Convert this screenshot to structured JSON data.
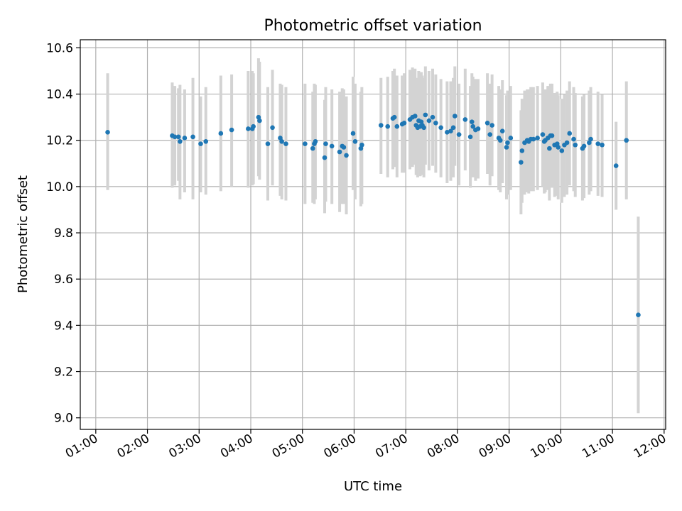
{
  "chart_data": {
    "type": "scatter",
    "title": "Photometric offset variation",
    "xlabel": "UTC time",
    "ylabel": "Photometric offset",
    "xlim": [
      0.7,
      12.03
    ],
    "ylim": [
      8.95,
      10.635
    ],
    "x_ticks": [
      1,
      2,
      3,
      4,
      5,
      6,
      7,
      8,
      9,
      10,
      11,
      12
    ],
    "x_tick_labels": [
      "01:00",
      "02:00",
      "03:00",
      "04:00",
      "05:00",
      "06:00",
      "07:00",
      "08:00",
      "09:00",
      "10:00",
      "11:00",
      "12:00"
    ],
    "y_ticks": [
      9.0,
      9.2,
      9.4,
      9.6,
      9.8,
      10.0,
      10.2,
      10.4,
      10.6
    ],
    "y_tick_labels": [
      "9.0",
      "9.2",
      "9.4",
      "9.6",
      "9.8",
      "10.0",
      "10.2",
      "10.4",
      "10.6"
    ],
    "grid": true,
    "colors": {
      "marker": "#1f77b4",
      "errorbar": "#d3d3d3",
      "grid": "#b0b0b0",
      "axes": "#000000"
    },
    "series": [
      {
        "name": "Photometric offset",
        "x": [
          1.23,
          2.48,
          2.53,
          2.6,
          2.63,
          2.72,
          2.88,
          3.03,
          3.13,
          3.42,
          3.63,
          3.95,
          4.03,
          4.05,
          4.15,
          4.17,
          4.33,
          4.42,
          4.57,
          4.6,
          4.68,
          5.05,
          5.2,
          5.23,
          5.25,
          5.43,
          5.45,
          5.57,
          5.72,
          5.77,
          5.8,
          5.85,
          5.98,
          6.02,
          6.13,
          6.15,
          6.52,
          6.65,
          6.75,
          6.78,
          6.83,
          6.93,
          6.97,
          7.08,
          7.13,
          7.18,
          7.2,
          7.23,
          7.25,
          7.28,
          7.3,
          7.32,
          7.35,
          7.38,
          7.45,
          7.52,
          7.58,
          7.68,
          7.8,
          7.87,
          7.92,
          7.95,
          8.03,
          8.15,
          8.25,
          8.28,
          8.3,
          8.35,
          8.4,
          8.58,
          8.63,
          8.67,
          8.8,
          8.83,
          8.87,
          8.95,
          8.97,
          9.03,
          9.23,
          9.25,
          9.3,
          9.35,
          9.38,
          9.42,
          9.47,
          9.55,
          9.65,
          9.68,
          9.7,
          9.75,
          9.78,
          9.8,
          9.83,
          9.88,
          9.93,
          9.95,
          10.02,
          10.07,
          10.12,
          10.17,
          10.25,
          10.28,
          10.42,
          10.45,
          10.55,
          10.58,
          10.72,
          10.8,
          11.07,
          11.27,
          11.5
        ],
        "y": [
          10.235,
          10.22,
          10.215,
          10.215,
          10.195,
          10.21,
          10.215,
          10.185,
          10.195,
          10.23,
          10.245,
          10.25,
          10.25,
          10.26,
          10.3,
          10.285,
          10.185,
          10.255,
          10.21,
          10.195,
          10.185,
          10.185,
          10.165,
          10.185,
          10.195,
          10.125,
          10.185,
          10.175,
          10.15,
          10.175,
          10.17,
          10.135,
          10.23,
          10.195,
          10.165,
          10.18,
          10.265,
          10.26,
          10.295,
          10.3,
          10.26,
          10.27,
          10.275,
          10.29,
          10.3,
          10.305,
          10.265,
          10.255,
          10.285,
          10.26,
          10.28,
          10.265,
          10.255,
          10.31,
          10.285,
          10.3,
          10.275,
          10.255,
          10.235,
          10.24,
          10.255,
          10.305,
          10.225,
          10.29,
          10.215,
          10.28,
          10.26,
          10.245,
          10.25,
          10.275,
          10.225,
          10.265,
          10.21,
          10.2,
          10.24,
          10.17,
          10.19,
          10.21,
          10.105,
          10.155,
          10.19,
          10.2,
          10.195,
          10.205,
          10.205,
          10.21,
          10.225,
          10.195,
          10.2,
          10.21,
          10.165,
          10.22,
          10.22,
          10.18,
          10.185,
          10.17,
          10.155,
          10.18,
          10.19,
          10.23,
          10.205,
          10.18,
          10.165,
          10.175,
          10.19,
          10.205,
          10.185,
          10.18,
          10.09,
          10.2,
          9.445
        ],
        "yerr_low": [
          9.985,
          9.995,
          10.005,
          10.025,
          9.945,
          9.975,
          9.945,
          9.975,
          9.965,
          9.98,
          10.0,
          9.995,
          10.005,
          10.01,
          10.045,
          10.03,
          9.94,
          10.005,
          9.96,
          9.945,
          9.94,
          9.925,
          9.93,
          9.925,
          9.945,
          9.885,
          9.935,
          9.925,
          9.89,
          9.925,
          9.925,
          9.88,
          9.985,
          9.945,
          9.915,
          9.925,
          10.055,
          10.04,
          10.075,
          10.085,
          10.04,
          10.06,
          10.06,
          10.075,
          10.085,
          10.095,
          10.05,
          10.04,
          10.07,
          10.045,
          10.065,
          10.05,
          10.04,
          10.095,
          10.07,
          10.09,
          10.06,
          10.04,
          10.015,
          10.025,
          10.04,
          10.09,
          10.005,
          10.07,
          9.995,
          10.065,
          10.04,
          10.025,
          10.035,
          10.055,
          10.005,
          10.045,
          9.985,
          9.975,
          10.015,
          9.945,
          9.965,
          9.985,
          9.88,
          9.93,
          9.965,
          9.975,
          9.97,
          9.98,
          9.98,
          9.985,
          10.0,
          9.97,
          9.975,
          9.985,
          9.94,
          9.995,
          9.995,
          9.955,
          9.96,
          9.945,
          9.93,
          9.955,
          9.965,
          10.005,
          9.98,
          9.955,
          9.94,
          9.95,
          9.965,
          9.98,
          9.96,
          9.955,
          9.9,
          9.945,
          9.02
        ],
        "yerr_high": [
          10.49,
          10.45,
          10.435,
          10.425,
          10.44,
          10.42,
          10.47,
          10.39,
          10.43,
          10.48,
          10.485,
          10.5,
          10.5,
          10.49,
          10.555,
          10.54,
          10.43,
          10.505,
          10.445,
          10.44,
          10.43,
          10.445,
          10.41,
          10.445,
          10.44,
          10.375,
          10.43,
          10.42,
          10.41,
          10.425,
          10.42,
          10.39,
          10.475,
          10.445,
          10.41,
          10.43,
          10.47,
          10.475,
          10.5,
          10.51,
          10.48,
          10.48,
          10.49,
          10.505,
          10.515,
          10.51,
          10.47,
          10.465,
          10.5,
          10.475,
          10.495,
          10.48,
          10.47,
          10.52,
          10.5,
          10.51,
          10.485,
          10.465,
          10.455,
          10.455,
          10.47,
          10.52,
          10.445,
          10.51,
          10.435,
          10.49,
          10.475,
          10.465,
          10.465,
          10.49,
          10.445,
          10.485,
          10.435,
          10.42,
          10.46,
          10.395,
          10.415,
          10.435,
          10.33,
          10.38,
          10.415,
          10.42,
          10.42,
          10.43,
          10.43,
          10.435,
          10.45,
          10.42,
          10.42,
          10.435,
          10.39,
          10.445,
          10.445,
          10.405,
          10.41,
          10.395,
          10.38,
          10.4,
          10.415,
          10.455,
          10.43,
          10.405,
          10.39,
          10.4,
          10.415,
          10.43,
          10.41,
          10.4,
          10.28,
          10.455,
          9.87
        ]
      }
    ]
  }
}
